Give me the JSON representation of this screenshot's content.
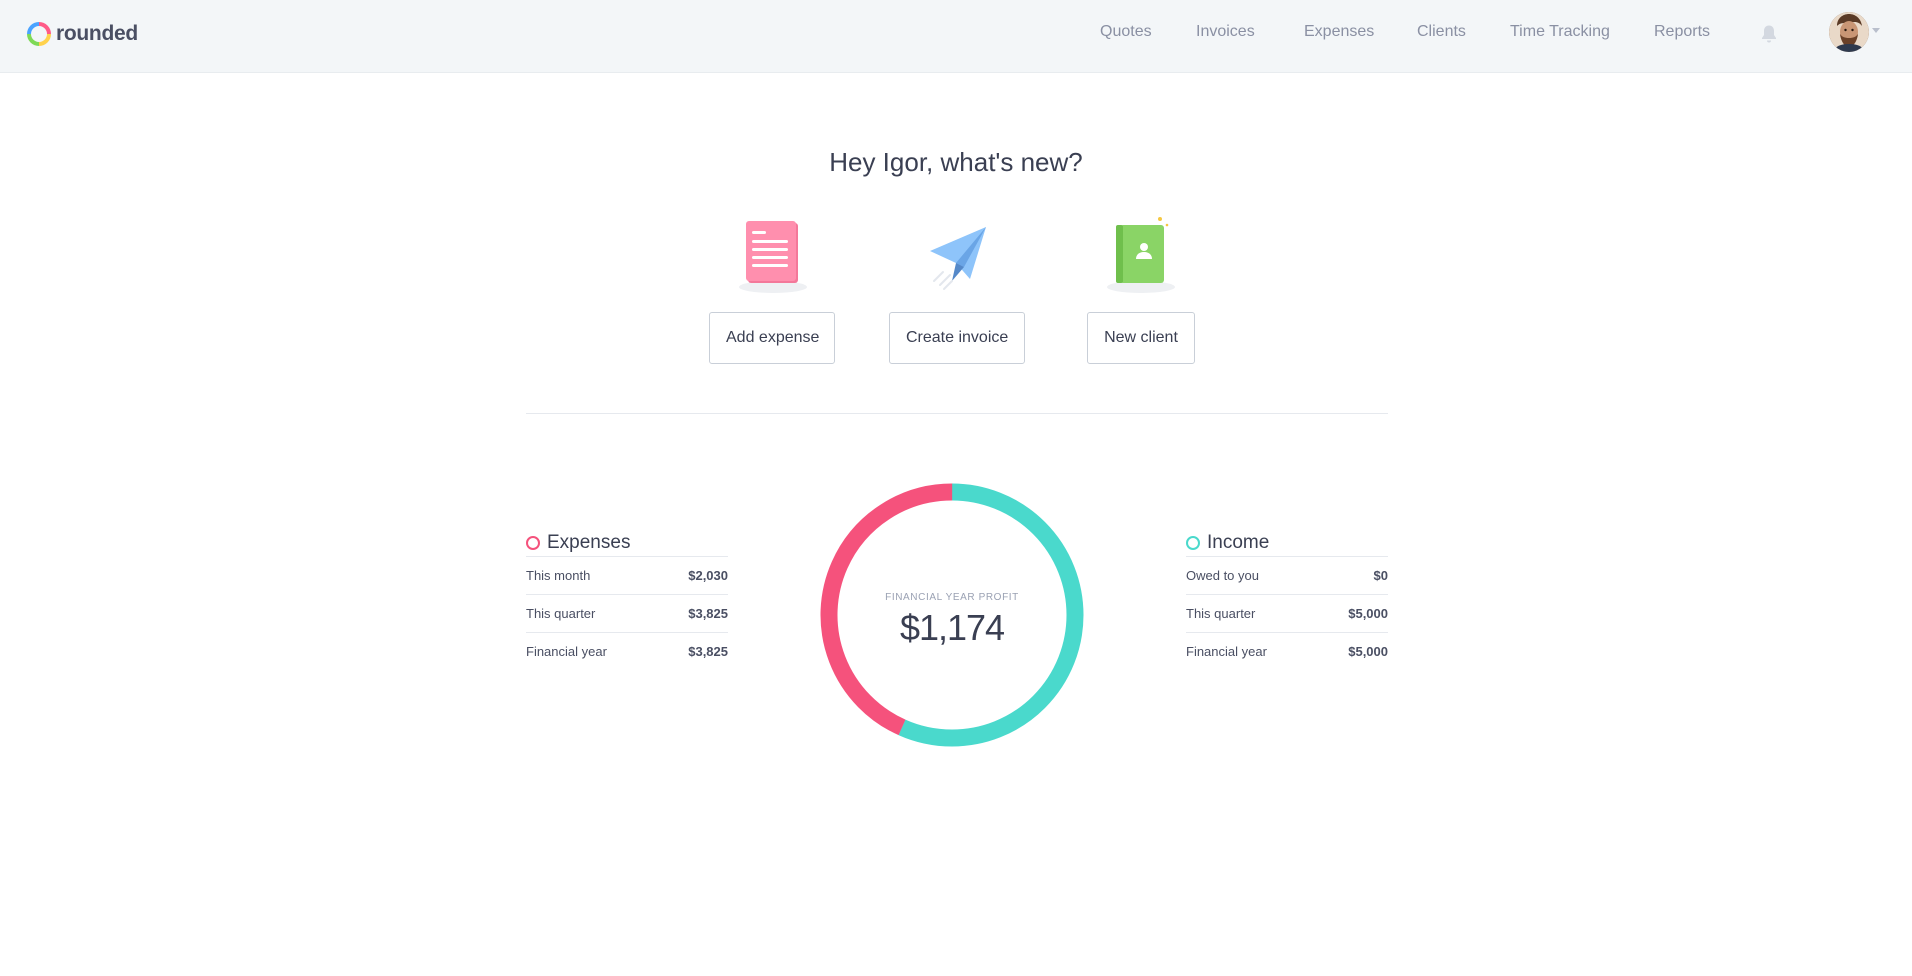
{
  "app": {
    "name": "rounded"
  },
  "nav": {
    "items": [
      {
        "id": "quotes",
        "label": "Quotes"
      },
      {
        "id": "invoices",
        "label": "Invoices"
      },
      {
        "id": "expenses",
        "label": "Expenses"
      },
      {
        "id": "clients",
        "label": "Clients"
      },
      {
        "id": "time-tracking",
        "label": "Time Tracking"
      },
      {
        "id": "reports",
        "label": "Reports"
      }
    ],
    "icons": {
      "notifications": "bell-icon",
      "account_menu": "chevron-down-icon"
    }
  },
  "greeting": "Hey Igor, what's new?",
  "actions": [
    {
      "id": "add-expense",
      "label": "Add expense",
      "icon": "document-icon",
      "color": "#ff7fa0"
    },
    {
      "id": "create-invoice",
      "label": "Create invoice",
      "icon": "paper-plane-icon",
      "color": "#7bb8f5"
    },
    {
      "id": "new-client",
      "label": "New client",
      "icon": "contact-book-icon",
      "color": "#8fdc6b"
    }
  ],
  "expenses": {
    "title": "Expenses",
    "color": "#f5527c",
    "rows": [
      {
        "label": "This month",
        "value": "$2,030"
      },
      {
        "label": "This quarter",
        "value": "$3,825"
      },
      {
        "label": "Financial year",
        "value": "$3,825"
      }
    ]
  },
  "income": {
    "title": "Income",
    "color": "#4ad9cc",
    "rows": [
      {
        "label": "Owed to you",
        "value": "$0"
      },
      {
        "label": "This quarter",
        "value": "$5,000"
      },
      {
        "label": "Financial year",
        "value": "$5,000"
      }
    ]
  },
  "profit": {
    "label": "Financial year profit",
    "value": "$1,174"
  },
  "chart_data": {
    "type": "pie",
    "categories": [
      "Expenses",
      "Income"
    ],
    "values": [
      3825,
      5000
    ],
    "colors": [
      "#f5527c",
      "#4ad9cc"
    ]
  }
}
